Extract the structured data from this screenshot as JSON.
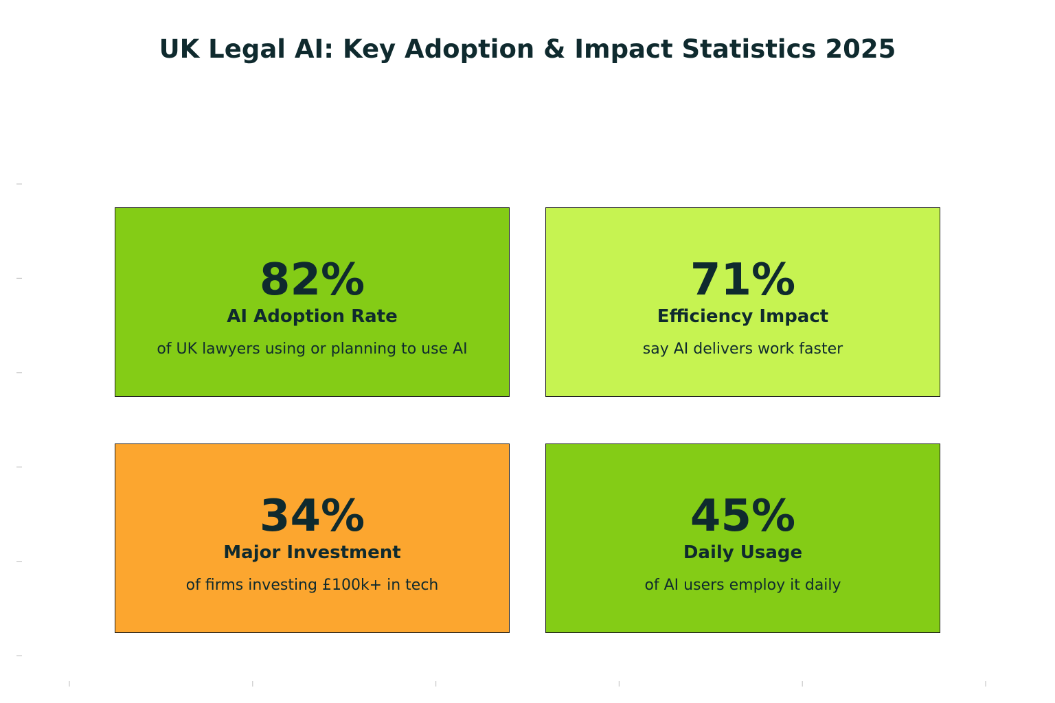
{
  "chart_data": {
    "type": "table",
    "title": "UK Legal AI: Key Adoption & Impact Statistics 2025",
    "cards": [
      {
        "value": "82%",
        "label": "AI Adoption Rate",
        "description": "of UK lawyers using or planning to use AI",
        "color": "#84cc16"
      },
      {
        "value": "71%",
        "label": "Efficiency Impact",
        "description": "say AI delivers work faster",
        "color": "#c6f351"
      },
      {
        "value": "34%",
        "label": "Major Investment",
        "description": "of firms investing £100k+ in tech",
        "color": "#fca62f"
      },
      {
        "value": "45%",
        "label": "Daily Usage",
        "description": "of AI users employ it daily",
        "color": "#84cc16"
      }
    ],
    "grid": false
  }
}
